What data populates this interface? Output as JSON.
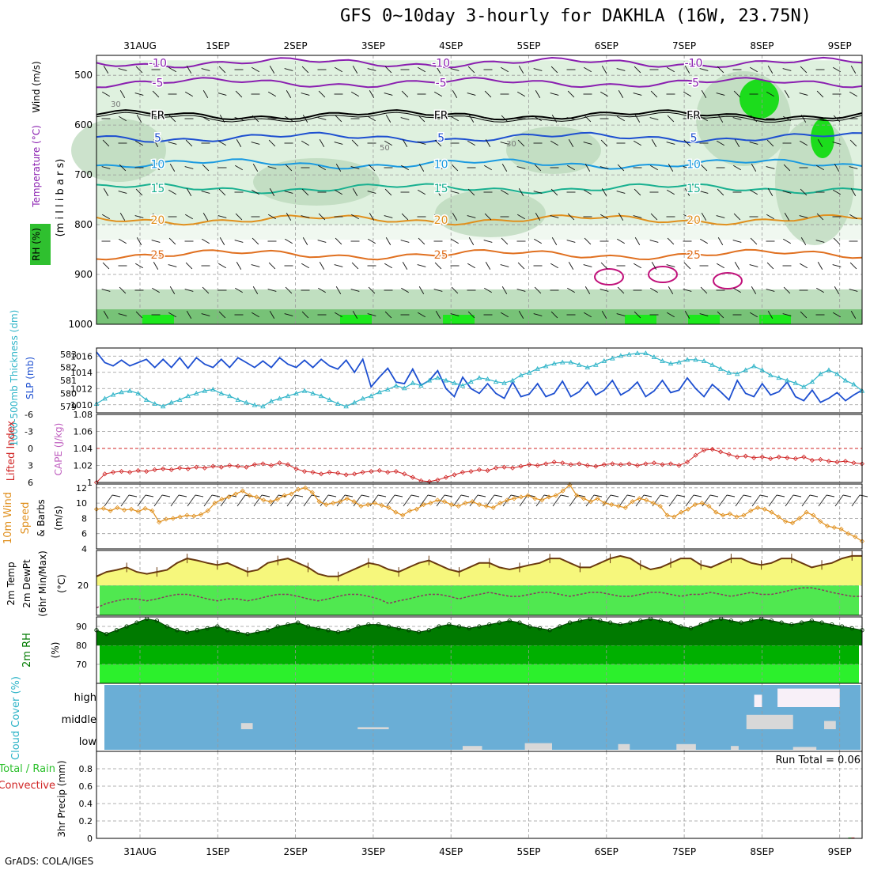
{
  "title": "GFS 0~10day 3-hourly for DAKHLA (16W, 23.75N)",
  "footer": "GrADS: COLA/IGES",
  "date_labels": [
    "31AUG",
    "1SEP",
    "2SEP",
    "3SEP",
    "4SEP",
    "5SEP",
    "6SEP",
    "7SEP",
    "8SEP",
    "9SEP"
  ],
  "colors": {
    "purple": "#8a1fb0",
    "blue": "#1d4fd0",
    "lightblue": "#1a9ae0",
    "teal": "#19b090",
    "orange": "#e0901e",
    "darkorange": "#e07020",
    "magenta": "#c0107a",
    "cyan": "#2fb4c8",
    "red": "#d02424",
    "yellow": "#f6f77c",
    "green": "#50e850",
    "darkgreen": "#007a00",
    "cloudblue": "#6aaed6"
  },
  "chart_data": [
    {
      "type": "contour",
      "panel": "upper-air",
      "ylabel_parts": [
        "Wind (m/s)",
        "Temperature (°C)",
        "RH (%)"
      ],
      "yunit": "(m i l l i b a r s)",
      "yticks": [
        500,
        600,
        700,
        800,
        900,
        1000
      ],
      "ylim": [
        460,
        1000
      ],
      "isotherms": [
        {
          "label": "-10",
          "level": 475
        },
        {
          "label": "-5",
          "level": 515
        },
        {
          "label": "FR",
          "level": 580
        },
        {
          "label": "5",
          "level": 625
        },
        {
          "label": "10",
          "level": 678
        },
        {
          "label": "15",
          "level": 727
        },
        {
          "label": "20",
          "level": 790
        },
        {
          "label": "25",
          "level": 860
        }
      ],
      "rh_labels": [
        "30",
        "50",
        "30"
      ]
    },
    {
      "type": "line",
      "panel": "thickness-slp",
      "ylabel_left": "1000-500mb Thickness (dm)",
      "ylabel_right": "SLP (mb)",
      "ylim_left": [
        578.5,
        583.5
      ],
      "yticks_left": [
        579,
        580,
        581,
        582,
        583
      ],
      "ylim_right": [
        1009,
        1017
      ],
      "yticks_right": [
        1010,
        1012,
        1014,
        1016
      ],
      "series": [
        {
          "name": "SLP",
          "values": [
            1016.5,
            1015.2,
            1014.8,
            1015.5,
            1014.8,
            1015.2,
            1015.6,
            1014.6,
            1015.6,
            1014.6,
            1015.8,
            1014.5,
            1015.8,
            1015.0,
            1014.6,
            1015.6,
            1014.6,
            1015.8,
            1015.2,
            1014.6,
            1015.4,
            1014.6,
            1015.8,
            1015.0,
            1014.6,
            1015.5,
            1014.6,
            1015.6,
            1014.8,
            1014.4,
            1015.5,
            1014.0,
            1015.6,
            1012.2,
            1013.4,
            1014.5,
            1012.8,
            1012.6,
            1014.4,
            1012.4,
            1013.0,
            1014.2,
            1012.0,
            1011.0,
            1013.4,
            1012.0,
            1011.4,
            1012.6,
            1011.4,
            1010.8,
            1012.8,
            1011.0,
            1011.3,
            1012.6,
            1011.0,
            1011.4,
            1012.9,
            1011.0,
            1011.6,
            1012.8,
            1011.2,
            1011.8,
            1013.0,
            1011.2,
            1011.8,
            1012.8,
            1011.0,
            1011.7,
            1013.0,
            1011.5,
            1011.8,
            1013.3,
            1012.0,
            1011.0,
            1012.5,
            1011.6,
            1010.6,
            1013.0,
            1011.4,
            1011.0,
            1012.6,
            1011.2,
            1011.6,
            1012.8,
            1011.0,
            1010.5,
            1011.8,
            1010.3,
            1010.8,
            1011.5,
            1010.5,
            1011.2,
            1011.8
          ]
        },
        {
          "name": "Thickness",
          "values": [
            579.2,
            579.6,
            579.9,
            580.1,
            580.2,
            580.0,
            579.5,
            579.2,
            579.0,
            579.3,
            579.5,
            579.8,
            580.0,
            580.2,
            580.3,
            580.0,
            579.8,
            579.5,
            579.3,
            579.1,
            579.0,
            579.4,
            579.6,
            579.8,
            580.0,
            580.2,
            580.0,
            579.8,
            579.5,
            579.2,
            579.0,
            579.3,
            579.6,
            579.8,
            580.1,
            580.3,
            580.6,
            580.4,
            580.8,
            580.6,
            581.0,
            581.2,
            581.0,
            580.8,
            580.6,
            580.9,
            581.2,
            581.1,
            580.9,
            580.8,
            581.0,
            581.4,
            581.6,
            581.9,
            582.1,
            582.3,
            582.4,
            582.4,
            582.2,
            582.0,
            582.2,
            582.5,
            582.7,
            582.9,
            583.0,
            583.1,
            583.1,
            582.8,
            582.5,
            582.3,
            582.4,
            582.6,
            582.6,
            582.5,
            582.2,
            581.9,
            581.6,
            581.5,
            581.8,
            582.1,
            581.8,
            581.4,
            581.2,
            581.0,
            580.8,
            580.5,
            580.9,
            581.5,
            581.8,
            581.5,
            581.0,
            580.7,
            580.2
          ]
        }
      ]
    },
    {
      "type": "line",
      "panel": "stability",
      "ylabel_left": "Lifted Index",
      "ylabel_right": "CAPE (J/kg)",
      "yticks_left": [
        -6,
        -3,
        0,
        3,
        6
      ],
      "yticks_right": [
        1,
        1.02,
        1.04,
        1.06,
        1.08
      ],
      "ylim_right": [
        1,
        1.08
      ],
      "reference_line": 1.04,
      "series": [
        {
          "name": "Lifted Index",
          "values": [
            1.0,
            1.01,
            1.012,
            1.013,
            1.012,
            1.014,
            1.013,
            1.015,
            1.016,
            1.015,
            1.017,
            1.016,
            1.018,
            1.017,
            1.019,
            1.018,
            1.02,
            1.019,
            1.018,
            1.021,
            1.022,
            1.02,
            1.023,
            1.021,
            1.016,
            1.013,
            1.012,
            1.01,
            1.012,
            1.011,
            1.009,
            1.01,
            1.012,
            1.013,
            1.014,
            1.012,
            1.013,
            1.01,
            1.006,
            1.002,
            1.001,
            1.003,
            1.006,
            1.009,
            1.012,
            1.013,
            1.015,
            1.014,
            1.017,
            1.018,
            1.017,
            1.019,
            1.021,
            1.02,
            1.022,
            1.024,
            1.023,
            1.021,
            1.022,
            1.02,
            1.019,
            1.021,
            1.022,
            1.021,
            1.022,
            1.02,
            1.022,
            1.023,
            1.021,
            1.022,
            1.02,
            1.024,
            1.032,
            1.038,
            1.039,
            1.036,
            1.033,
            1.03,
            1.031,
            1.029,
            1.03,
            1.028,
            1.03,
            1.029,
            1.028,
            1.03,
            1.026,
            1.027,
            1.025,
            1.024,
            1.025,
            1.023,
            1.022
          ]
        }
      ]
    },
    {
      "type": "line",
      "panel": "wind10m",
      "ylabel": "10m Wind Speed & Barbs (m/s)",
      "yticks": [
        4,
        6,
        8,
        10,
        12
      ],
      "ylim": [
        4,
        12.5
      ],
      "series": [
        {
          "name": "10m Wind",
          "values": [
            9.2,
            9.3,
            9.0,
            9.4,
            9.1,
            9.2,
            8.9,
            9.3,
            9.0,
            7.5,
            7.9,
            8.0,
            8.2,
            8.4,
            8.3,
            8.5,
            9.0,
            10.0,
            10.5,
            10.8,
            11.2,
            11.6,
            11.0,
            10.8,
            10.4,
            10.2,
            10.5,
            11.0,
            11.2,
            11.8,
            12.0,
            11.4,
            10.2,
            9.8,
            10.0,
            10.2,
            10.6,
            10.2,
            9.6,
            9.8,
            10.0,
            9.7,
            9.4,
            8.8,
            8.4,
            9.0,
            9.2,
            9.8,
            10.0,
            10.4,
            10.2,
            9.8,
            9.6,
            10.0,
            10.2,
            9.8,
            9.6,
            9.4,
            10.0,
            10.4,
            10.6,
            10.8,
            11.0,
            10.6,
            10.4,
            10.8,
            11.0,
            11.6,
            12.4,
            11.0,
            10.6,
            10.2,
            10.6,
            10.0,
            9.8,
            9.6,
            9.4,
            10.2,
            10.6,
            10.4,
            10.0,
            9.6,
            8.4,
            8.2,
            8.8,
            9.2,
            9.8,
            10.0,
            9.6,
            8.8,
            8.4,
            8.6,
            8.2,
            8.4,
            9.0,
            9.4,
            9.2,
            8.8,
            8.2,
            7.6,
            7.4,
            8.0,
            8.8,
            8.4,
            7.6,
            7.0,
            6.8,
            6.6,
            6.0,
            5.6,
            5.0
          ]
        }
      ]
    },
    {
      "type": "area",
      "panel": "temperature",
      "ylabel": "2m Temp 2m DewPt (6hr Min/Max) (°C)",
      "yticks": [
        20
      ],
      "ylim": [
        14,
        27
      ],
      "series": [
        {
          "name": "2m Temp",
          "values": [
            21.8,
            22.7,
            23.1,
            23.6,
            22.7,
            22.3,
            22.7,
            23.1,
            24.5,
            25.4,
            25.0,
            24.5,
            24.1,
            24.5,
            23.6,
            22.7,
            23.1,
            24.5,
            25.0,
            25.4,
            24.5,
            23.6,
            22.3,
            21.8,
            21.8,
            22.7,
            23.6,
            24.5,
            24.1,
            23.2,
            22.7,
            23.6,
            24.5,
            25.0,
            24.1,
            23.2,
            22.7,
            23.6,
            24.5,
            24.5,
            23.6,
            23.2,
            23.6,
            24.1,
            24.5,
            25.4,
            25.4,
            24.5,
            23.6,
            23.6,
            24.5,
            25.4,
            25.9,
            25.4,
            24.1,
            23.2,
            23.6,
            24.5,
            25.4,
            25.4,
            24.1,
            23.6,
            24.5,
            25.4,
            25.4,
            24.5,
            24.1,
            24.5,
            25.4,
            25.4,
            24.5,
            23.6,
            24.1,
            24.5,
            25.4,
            25.9,
            25.9
          ]
        },
        {
          "name": "2m DewPt",
          "values": [
            15.5,
            16.4,
            16.9,
            17.3,
            17.3,
            16.9,
            17.3,
            17.8,
            18.2,
            18.2,
            17.8,
            17.3,
            16.9,
            17.3,
            17.3,
            16.9,
            17.3,
            17.8,
            18.2,
            18.2,
            17.8,
            17.3,
            16.9,
            17.3,
            17.8,
            18.2,
            18.2,
            17.8,
            17.3,
            16.4,
            16.9,
            17.3,
            17.8,
            18.2,
            18.2,
            17.8,
            17.3,
            17.8,
            18.2,
            18.6,
            18.2,
            17.8,
            17.8,
            18.2,
            18.6,
            18.6,
            18.2,
            17.8,
            18.2,
            18.6,
            18.6,
            18.2,
            17.8,
            17.8,
            18.2,
            18.6,
            18.6,
            18.2,
            17.8,
            18.2,
            18.2,
            18.6,
            18.2,
            17.8,
            18.2,
            18.6,
            18.2,
            18.2,
            18.6,
            19.1,
            19.5,
            19.5,
            19.1,
            18.6,
            18.2,
            17.8,
            17.8
          ]
        }
      ]
    },
    {
      "type": "area",
      "panel": "humidity",
      "ylabel": "2m RH (%)",
      "yticks": [
        70,
        80,
        90
      ],
      "ylim": [
        60,
        95
      ],
      "series": [
        {
          "name": "2m RH",
          "values": [
            88,
            86,
            88,
            90,
            92,
            94,
            93,
            90,
            88,
            87,
            88,
            89,
            90,
            88,
            87,
            86,
            87,
            88,
            90,
            91,
            92,
            90,
            89,
            88,
            87,
            88,
            90,
            91,
            91,
            90,
            89,
            88,
            87,
            88,
            90,
            91,
            90,
            89,
            90,
            91,
            92,
            93,
            92,
            90,
            89,
            88,
            90,
            92,
            93,
            94,
            93,
            92,
            91,
            92,
            93,
            94,
            93,
            92,
            90,
            89,
            91,
            93,
            94,
            93,
            92,
            93,
            94,
            93,
            92,
            91,
            92,
            93,
            92,
            91,
            90,
            89,
            88
          ]
        }
      ]
    },
    {
      "type": "bar",
      "panel": "cloud",
      "ylabel": "Cloud Cover (%)",
      "yticks": [
        "high",
        "middle",
        "low"
      ],
      "blocks": [
        {
          "level": "high",
          "start_day": 7.9,
          "end_day": 8.0,
          "fraction": 0.6
        },
        {
          "level": "high",
          "start_day": 8.2,
          "end_day": 9.0,
          "fraction": 0.9
        },
        {
          "level": "middle",
          "start_day": 7.8,
          "end_day": 8.4,
          "fraction": 0.7
        },
        {
          "level": "middle",
          "start_day": 8.8,
          "end_day": 8.95,
          "fraction": 0.4
        },
        {
          "level": "middle",
          "start_day": 1.3,
          "end_day": 1.45,
          "fraction": 0.3
        },
        {
          "level": "middle",
          "start_day": 2.8,
          "end_day": 3.2,
          "fraction": 0.1
        },
        {
          "level": "low",
          "start_day": 4.15,
          "end_day": 4.4,
          "fraction": 0.2
        },
        {
          "level": "low",
          "start_day": 4.95,
          "end_day": 5.3,
          "fraction": 0.35
        },
        {
          "level": "low",
          "start_day": 6.15,
          "end_day": 6.3,
          "fraction": 0.3
        },
        {
          "level": "low",
          "start_day": 6.9,
          "end_day": 7.15,
          "fraction": 0.3
        },
        {
          "level": "low",
          "start_day": 7.6,
          "end_day": 7.7,
          "fraction": 0.2
        },
        {
          "level": "low",
          "start_day": 8.4,
          "end_day": 8.7,
          "fraction": 0.15
        }
      ]
    },
    {
      "type": "bar",
      "panel": "precip",
      "ylabel_parts": [
        "Total / Rain",
        "Convective",
        "3hr Precip (mm)"
      ],
      "yticks": [
        0,
        0.2,
        0.4,
        0.6,
        0.8
      ],
      "ylim": [
        0,
        1
      ],
      "run_total": "Run Total = 0.06",
      "values": [
        {
          "day": 9.15,
          "total": 0.06,
          "convective": 0.06
        }
      ]
    }
  ]
}
